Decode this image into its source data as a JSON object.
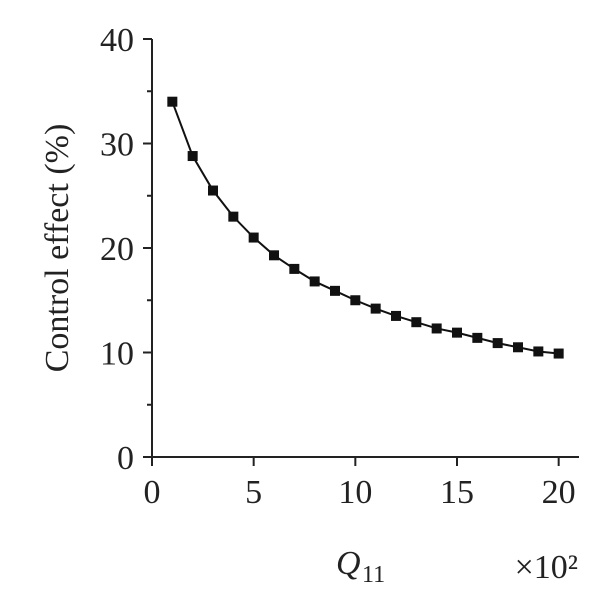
{
  "chart_data": {
    "type": "line",
    "y_label": "Control effect (%)",
    "x_label": "Q",
    "x_label_subscript": "11",
    "x_multiplier": "×10²",
    "x": [
      1,
      2,
      3,
      4,
      5,
      6,
      7,
      8,
      9,
      10,
      11,
      12,
      13,
      14,
      15,
      16,
      17,
      18,
      19,
      20
    ],
    "series": [
      {
        "color": "#111111",
        "values": [
          34.0,
          28.8,
          25.5,
          23.0,
          21.0,
          19.3,
          18.0,
          16.8,
          15.9,
          15.0,
          14.2,
          13.5,
          12.9,
          12.3,
          11.9,
          11.4,
          10.9,
          10.5,
          10.1,
          9.9
        ]
      }
    ],
    "xlim": [
      0,
      21
    ],
    "xticks": [
      0,
      5,
      10,
      15,
      20
    ],
    "ylim": [
      0,
      40
    ],
    "yticks": [
      0,
      10,
      20,
      30,
      40
    ],
    "yminorticks": [
      5,
      15,
      25,
      35
    ],
    "grid": false,
    "marker": "square"
  }
}
